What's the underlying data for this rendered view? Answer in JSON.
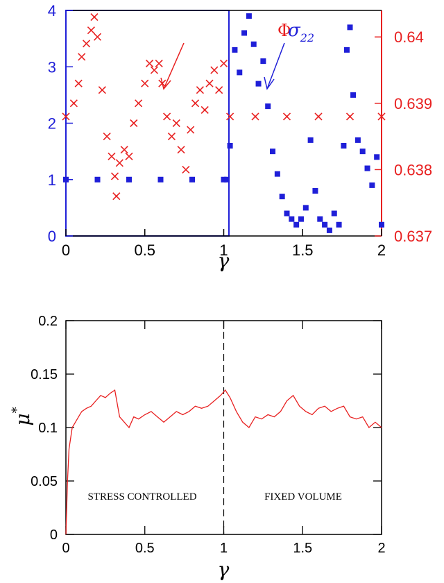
{
  "chart_data": [
    {
      "type": "scatter",
      "xlabel": "γ",
      "xlim": [
        0,
        2
      ],
      "x_ticks": [
        0,
        0.5,
        1,
        1.5,
        2
      ],
      "x_tick_labels": [
        "0",
        "0.5",
        "1",
        "1.5",
        "2"
      ],
      "y_left": {
        "lim": [
          0,
          4
        ],
        "ticks": [
          0,
          1,
          2,
          3,
          4
        ],
        "tick_labels": [
          "0",
          "1",
          "2",
          "3",
          "4"
        ],
        "color": "#1f1fd8"
      },
      "y_right": {
        "lim": [
          0.637,
          0.6404
        ],
        "ticks": [
          0.637,
          0.638,
          0.639,
          0.64
        ],
        "tick_labels": [
          "0.637",
          "0.638",
          "0.639",
          "0.64"
        ],
        "color": "#e82020"
      },
      "annotations": [
        {
          "text": "Φ",
          "color": "#e82020",
          "points_to_series": "Φ"
        },
        {
          "text": "σ",
          "subscript": "22",
          "color": "#1f1fd8",
          "points_to_series": "σ22"
        }
      ],
      "series": [
        {
          "name": "Φ",
          "axis": "right",
          "marker": "x",
          "color": "#e82020",
          "points": [
            [
              0.0,
              0.6388
            ],
            [
              0.05,
              0.639
            ],
            [
              0.08,
              0.6393
            ],
            [
              0.1,
              0.6397
            ],
            [
              0.13,
              0.6399
            ],
            [
              0.16,
              0.6401
            ],
            [
              0.18,
              0.6403
            ],
            [
              0.2,
              0.64
            ],
            [
              0.23,
              0.6392
            ],
            [
              0.26,
              0.6385
            ],
            [
              0.29,
              0.6382
            ],
            [
              0.31,
              0.6379
            ],
            [
              0.32,
              0.6376
            ],
            [
              0.34,
              0.6381
            ],
            [
              0.37,
              0.6383
            ],
            [
              0.4,
              0.6382
            ],
            [
              0.43,
              0.6387
            ],
            [
              0.46,
              0.639
            ],
            [
              0.5,
              0.6393
            ],
            [
              0.53,
              0.6396
            ],
            [
              0.56,
              0.6395
            ],
            [
              0.59,
              0.6396
            ],
            [
              0.61,
              0.6393
            ],
            [
              0.64,
              0.6388
            ],
            [
              0.67,
              0.6385
            ],
            [
              0.7,
              0.6387
            ],
            [
              0.73,
              0.6383
            ],
            [
              0.76,
              0.638
            ],
            [
              0.79,
              0.6386
            ],
            [
              0.82,
              0.639
            ],
            [
              0.85,
              0.6392
            ],
            [
              0.88,
              0.6389
            ],
            [
              0.91,
              0.6393
            ],
            [
              0.94,
              0.6395
            ],
            [
              0.97,
              0.6392
            ],
            [
              1.0,
              0.6396
            ],
            [
              1.04,
              0.6388
            ],
            [
              1.2,
              0.6388
            ],
            [
              1.4,
              0.6388
            ],
            [
              1.6,
              0.6388
            ],
            [
              1.8,
              0.6388
            ],
            [
              2.0,
              0.6388
            ]
          ]
        },
        {
          "name": "σ22",
          "axis": "left",
          "marker": "square",
          "color": "#1f1fd8",
          "points": [
            [
              0.0,
              1.0
            ],
            [
              0.2,
              1.0
            ],
            [
              0.4,
              1.0
            ],
            [
              0.6,
              1.0
            ],
            [
              0.8,
              1.0
            ],
            [
              1.0,
              1.0
            ],
            [
              1.02,
              1.0
            ],
            [
              1.04,
              1.6
            ],
            [
              1.07,
              3.3
            ],
            [
              1.1,
              2.9
            ],
            [
              1.13,
              3.6
            ],
            [
              1.16,
              3.9
            ],
            [
              1.19,
              3.4
            ],
            [
              1.22,
              2.7
            ],
            [
              1.25,
              3.1
            ],
            [
              1.28,
              2.3
            ],
            [
              1.31,
              1.5
            ],
            [
              1.34,
              1.1
            ],
            [
              1.37,
              0.7
            ],
            [
              1.4,
              0.4
            ],
            [
              1.43,
              0.3
            ],
            [
              1.46,
              0.2
            ],
            [
              1.49,
              0.3
            ],
            [
              1.52,
              0.5
            ],
            [
              1.55,
              1.7
            ],
            [
              1.58,
              0.8
            ],
            [
              1.61,
              0.3
            ],
            [
              1.64,
              0.2
            ],
            [
              1.67,
              0.1
            ],
            [
              1.7,
              0.4
            ],
            [
              1.73,
              0.2
            ],
            [
              1.76,
              1.6
            ],
            [
              1.78,
              3.3
            ],
            [
              1.8,
              3.7
            ],
            [
              1.82,
              2.5
            ],
            [
              1.85,
              1.7
            ],
            [
              1.88,
              1.5
            ],
            [
              1.91,
              1.2
            ],
            [
              1.94,
              0.9
            ],
            [
              1.97,
              1.4
            ],
            [
              2.0,
              0.2
            ]
          ]
        }
      ]
    },
    {
      "type": "line",
      "xlabel": "γ",
      "ylabel": "μ",
      "ylabel_superscript": "*",
      "xlim": [
        0,
        2
      ],
      "ylim": [
        0,
        0.2
      ],
      "x_ticks": [
        0,
        0.5,
        1,
        1.5,
        2
      ],
      "x_tick_labels": [
        "0",
        "0.5",
        "1",
        "1.5",
        "2"
      ],
      "y_ticks": [
        0,
        0.05,
        0.1,
        0.15,
        0.2
      ],
      "y_tick_labels": [
        "0",
        "0.05",
        "0.1",
        "0.15",
        "0.2"
      ],
      "vertical_dashed_line_x": 1,
      "region_labels": [
        "STRESS CONTROLLED",
        "FIXED VOLUME"
      ],
      "series": [
        {
          "name": "",
          "color": "#e82020",
          "points": [
            [
              0.0,
              0.0
            ],
            [
              0.01,
              0.05
            ],
            [
              0.02,
              0.08
            ],
            [
              0.04,
              0.1
            ],
            [
              0.06,
              0.105
            ],
            [
              0.08,
              0.11
            ],
            [
              0.1,
              0.115
            ],
            [
              0.13,
              0.118
            ],
            [
              0.16,
              0.12
            ],
            [
              0.19,
              0.125
            ],
            [
              0.22,
              0.13
            ],
            [
              0.25,
              0.128
            ],
            [
              0.28,
              0.132
            ],
            [
              0.31,
              0.135
            ],
            [
              0.34,
              0.11
            ],
            [
              0.37,
              0.105
            ],
            [
              0.4,
              0.1
            ],
            [
              0.43,
              0.11
            ],
            [
              0.46,
              0.108
            ],
            [
              0.5,
              0.112
            ],
            [
              0.54,
              0.115
            ],
            [
              0.58,
              0.11
            ],
            [
              0.62,
              0.105
            ],
            [
              0.66,
              0.11
            ],
            [
              0.7,
              0.115
            ],
            [
              0.74,
              0.112
            ],
            [
              0.78,
              0.115
            ],
            [
              0.82,
              0.12
            ],
            [
              0.86,
              0.118
            ],
            [
              0.9,
              0.12
            ],
            [
              0.94,
              0.125
            ],
            [
              0.98,
              0.13
            ],
            [
              1.01,
              0.135
            ],
            [
              1.04,
              0.128
            ],
            [
              1.08,
              0.115
            ],
            [
              1.12,
              0.105
            ],
            [
              1.16,
              0.1
            ],
            [
              1.2,
              0.11
            ],
            [
              1.24,
              0.108
            ],
            [
              1.28,
              0.112
            ],
            [
              1.32,
              0.11
            ],
            [
              1.36,
              0.115
            ],
            [
              1.4,
              0.125
            ],
            [
              1.44,
              0.13
            ],
            [
              1.48,
              0.12
            ],
            [
              1.52,
              0.115
            ],
            [
              1.56,
              0.112
            ],
            [
              1.6,
              0.118
            ],
            [
              1.64,
              0.12
            ],
            [
              1.68,
              0.115
            ],
            [
              1.72,
              0.118
            ],
            [
              1.76,
              0.12
            ],
            [
              1.8,
              0.11
            ],
            [
              1.84,
              0.108
            ],
            [
              1.88,
              0.11
            ],
            [
              1.92,
              0.1
            ],
            [
              1.96,
              0.105
            ],
            [
              2.0,
              0.1
            ]
          ]
        }
      ]
    }
  ]
}
